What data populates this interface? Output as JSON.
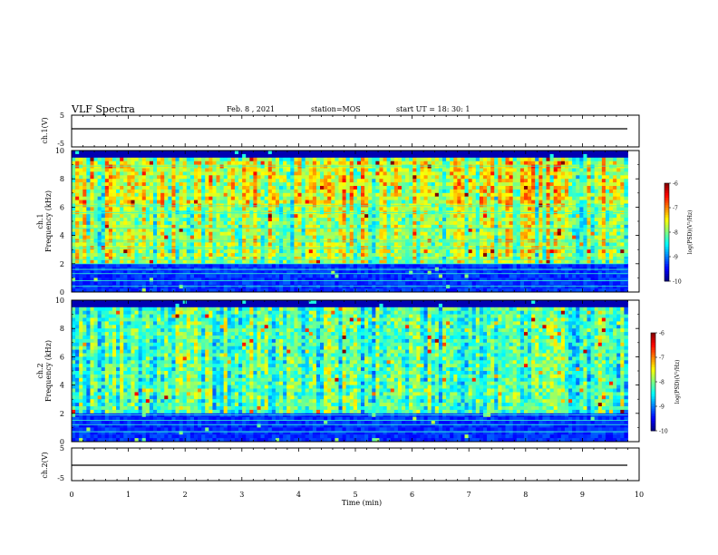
{
  "header": {
    "title": "VLF Spectra",
    "date": "Feb. 8  , 2021",
    "station": "station=MOS",
    "start": "start  UT  =   18: 30: 1"
  },
  "chart_data": [
    {
      "id": "ch1_waveform",
      "type": "line",
      "ylabel": "ch.1(V)",
      "ylim": [
        -5,
        5
      ],
      "y_ticks": [
        "5",
        "-5"
      ],
      "xlim": [
        0,
        10
      ],
      "series": [
        {
          "name": "",
          "x": [
            0,
            9.8
          ],
          "y": [
            0,
            0
          ]
        }
      ]
    },
    {
      "id": "ch1_spectrogram",
      "type": "heatmap",
      "ylabel": "ch.1",
      "ylabel2": "Frequency  (kHz)",
      "ylim": [
        0,
        10
      ],
      "y_ticks": [
        "0",
        "2",
        "4",
        "6",
        "8",
        "10"
      ],
      "xlim": [
        0,
        10
      ],
      "colorbar": {
        "label": "log(PSD)(V²/Hz)",
        "ticks": [
          "-6",
          "-7",
          "-8",
          "-9",
          "-10"
        ],
        "range": [
          -10,
          -6
        ]
      },
      "noise_lines_khz": [
        0.4,
        0.8,
        1.3,
        1.6,
        2.0,
        2.3,
        3.1,
        3.6,
        4.5,
        5.6,
        6.1,
        8.9
      ],
      "seed": 7
    },
    {
      "id": "ch2_spectrogram",
      "type": "heatmap",
      "ylabel": "ch.2",
      "ylabel2": "Frequency  (kHz)",
      "ylim": [
        0,
        10
      ],
      "y_ticks": [
        "0",
        "2",
        "4",
        "6",
        "8",
        "10"
      ],
      "xlim": [
        0,
        10
      ],
      "colorbar": {
        "label": "log(PSD)(V²/Hz)",
        "ticks": [
          "-6",
          "-7",
          "-8",
          "-9",
          "-10"
        ],
        "range": [
          -10,
          -6
        ]
      },
      "noise_lines_khz": [
        0.7,
        1.2,
        1.5,
        1.9
      ],
      "seed": 19
    },
    {
      "id": "ch2_waveform",
      "type": "line",
      "ylabel": "ch.2(V)",
      "ylim": [
        -5,
        5
      ],
      "y_ticks": [
        "5",
        "-5"
      ],
      "xlim": [
        0,
        10
      ],
      "series": [
        {
          "name": "",
          "x": [
            0,
            9.8
          ],
          "y": [
            0,
            0
          ]
        }
      ]
    }
  ],
  "x_axis": {
    "label": "Time  (min)",
    "ticks": [
      "0",
      "1",
      "2",
      "3",
      "4",
      "5",
      "6",
      "7",
      "8",
      "9",
      "10"
    ],
    "range": [
      0,
      10
    ]
  }
}
